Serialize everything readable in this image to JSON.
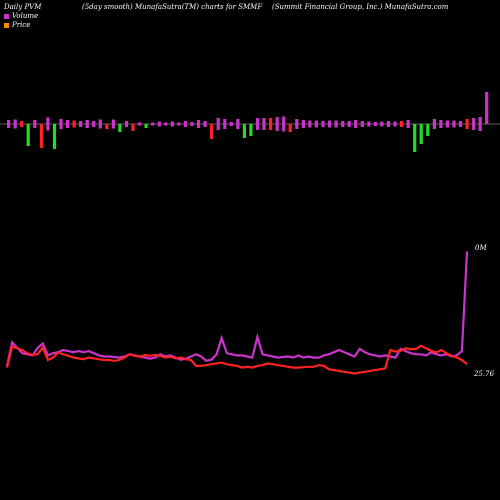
{
  "header": {
    "left": "Daily PVM",
    "middle": "(5day smooth) MunafaSutra(TM) charts for SMMF",
    "right": "(Summit Financial Group, Inc.) MunafaSutra.com"
  },
  "legend": [
    {
      "label": "Volume",
      "color": "#cc33cc"
    },
    {
      "label": "Price",
      "color": "#ff8800"
    }
  ],
  "colors": {
    "up": "#22dd22",
    "down": "#ff2222",
    "volume_line": "#cc33cc",
    "price_line": "#ff2222",
    "axis": "#bbbbbb"
  },
  "chart_data": {
    "type": "bar",
    "volume_bars": [
      {
        "v": 8,
        "c": "pm"
      },
      {
        "v": 9,
        "c": "pm"
      },
      {
        "v": 6,
        "c": "r"
      },
      {
        "v": 22,
        "c": "g"
      },
      {
        "v": 8,
        "c": "pm"
      },
      {
        "v": 24,
        "c": "r"
      },
      {
        "v": 13,
        "c": "pm"
      },
      {
        "v": 25,
        "c": "g"
      },
      {
        "v": 10,
        "c": "pm"
      },
      {
        "v": 8,
        "c": "pm"
      },
      {
        "v": 7,
        "c": "r"
      },
      {
        "v": 6,
        "c": "pm"
      },
      {
        "v": 8,
        "c": "pm"
      },
      {
        "v": 6,
        "c": "pm"
      },
      {
        "v": 9,
        "c": "pm"
      },
      {
        "v": 5,
        "c": "r"
      },
      {
        "v": 9,
        "c": "pm"
      },
      {
        "v": 8,
        "c": "g"
      },
      {
        "v": 6,
        "c": "pm"
      },
      {
        "v": 7,
        "c": "r"
      },
      {
        "v": 3,
        "c": "pm"
      },
      {
        "v": 4,
        "c": "g"
      },
      {
        "v": 3,
        "c": "pm"
      },
      {
        "v": 5,
        "c": "pm"
      },
      {
        "v": 3,
        "c": "pm"
      },
      {
        "v": 5,
        "c": "pm"
      },
      {
        "v": 3,
        "c": "pm"
      },
      {
        "v": 6,
        "c": "pm"
      },
      {
        "v": 4,
        "c": "pm"
      },
      {
        "v": 8,
        "c": "pm"
      },
      {
        "v": 6,
        "c": "pm"
      },
      {
        "v": 15,
        "c": "r"
      },
      {
        "v": 12,
        "c": "pm"
      },
      {
        "v": 10,
        "c": "pm"
      },
      {
        "v": 4,
        "c": "pm"
      },
      {
        "v": 10,
        "c": "pm"
      },
      {
        "v": 14,
        "c": "g"
      },
      {
        "v": 12,
        "c": "g"
      },
      {
        "v": 12,
        "c": "pm"
      },
      {
        "v": 12,
        "c": "pm"
      },
      {
        "v": 12,
        "c": "r"
      },
      {
        "v": 14,
        "c": "pm"
      },
      {
        "v": 15,
        "c": "pm"
      },
      {
        "v": 8,
        "c": "r"
      },
      {
        "v": 10,
        "c": "pm"
      },
      {
        "v": 8,
        "c": "pm"
      },
      {
        "v": 7,
        "c": "pm"
      },
      {
        "v": 7,
        "c": "pm"
      },
      {
        "v": 6,
        "c": "pm"
      },
      {
        "v": 7,
        "c": "pm"
      },
      {
        "v": 7,
        "c": "pm"
      },
      {
        "v": 6,
        "c": "pm"
      },
      {
        "v": 6,
        "c": "pm"
      },
      {
        "v": 8,
        "c": "pm"
      },
      {
        "v": 6,
        "c": "pm"
      },
      {
        "v": 5,
        "c": "pm"
      },
      {
        "v": 4,
        "c": "pm"
      },
      {
        "v": 5,
        "c": "pm"
      },
      {
        "v": 6,
        "c": "pm"
      },
      {
        "v": 5,
        "c": "pm"
      },
      {
        "v": 6,
        "c": "r"
      },
      {
        "v": 8,
        "c": "pm"
      },
      {
        "v": 28,
        "c": "g"
      },
      {
        "v": 20,
        "c": "g"
      },
      {
        "v": 12,
        "c": "g"
      },
      {
        "v": 10,
        "c": "pm"
      },
      {
        "v": 8,
        "c": "pm"
      },
      {
        "v": 7,
        "c": "pm"
      },
      {
        "v": 7,
        "c": "pm"
      },
      {
        "v": 6,
        "c": "pm"
      },
      {
        "v": 10,
        "c": "r"
      },
      {
        "v": 12,
        "c": "pm"
      },
      {
        "v": 14,
        "c": "pm"
      },
      {
        "v": 32,
        "c": "pm"
      }
    ],
    "volume_line": [
      18,
      62,
      52,
      42,
      40,
      38,
      52,
      60,
      38,
      42,
      44,
      48,
      46,
      44,
      46,
      44,
      46,
      42,
      38,
      36,
      36,
      35,
      34,
      36,
      40,
      38,
      36,
      34,
      32,
      34,
      40,
      36,
      38,
      34,
      30,
      32,
      36,
      40,
      36,
      28,
      30,
      40,
      70,
      42,
      40,
      38,
      38,
      36,
      34,
      72,
      40,
      38,
      36,
      34,
      35,
      36,
      34,
      38,
      34,
      36,
      34,
      34,
      38,
      40,
      44,
      48,
      44,
      40,
      36,
      50,
      44,
      40,
      38,
      36,
      38,
      36,
      34,
      50,
      46,
      42,
      40,
      40,
      38,
      44,
      40,
      38,
      40,
      36,
      38,
      46,
      230
    ],
    "price_line": [
      20,
      70,
      66,
      62,
      54,
      50,
      52,
      68,
      38,
      44,
      56,
      52,
      48,
      44,
      42,
      40,
      44,
      42,
      40,
      38,
      38,
      36,
      38,
      44,
      52,
      48,
      46,
      50,
      48,
      50,
      48,
      44,
      46,
      42,
      44,
      40,
      38,
      24,
      24,
      26,
      28,
      30,
      32,
      28,
      26,
      24,
      20,
      22,
      20,
      24,
      26,
      30,
      28,
      26,
      24,
      22,
      20,
      20,
      21,
      22,
      22,
      26,
      24,
      16,
      14,
      12,
      10,
      8,
      6,
      8,
      10,
      12,
      14,
      16,
      18,
      62,
      58,
      60,
      66,
      64,
      64,
      72,
      66,
      60,
      56,
      62,
      54,
      48,
      44,
      38,
      28
    ],
    "labels": {
      "volume_last": "0M",
      "price_last": "25.76"
    }
  }
}
